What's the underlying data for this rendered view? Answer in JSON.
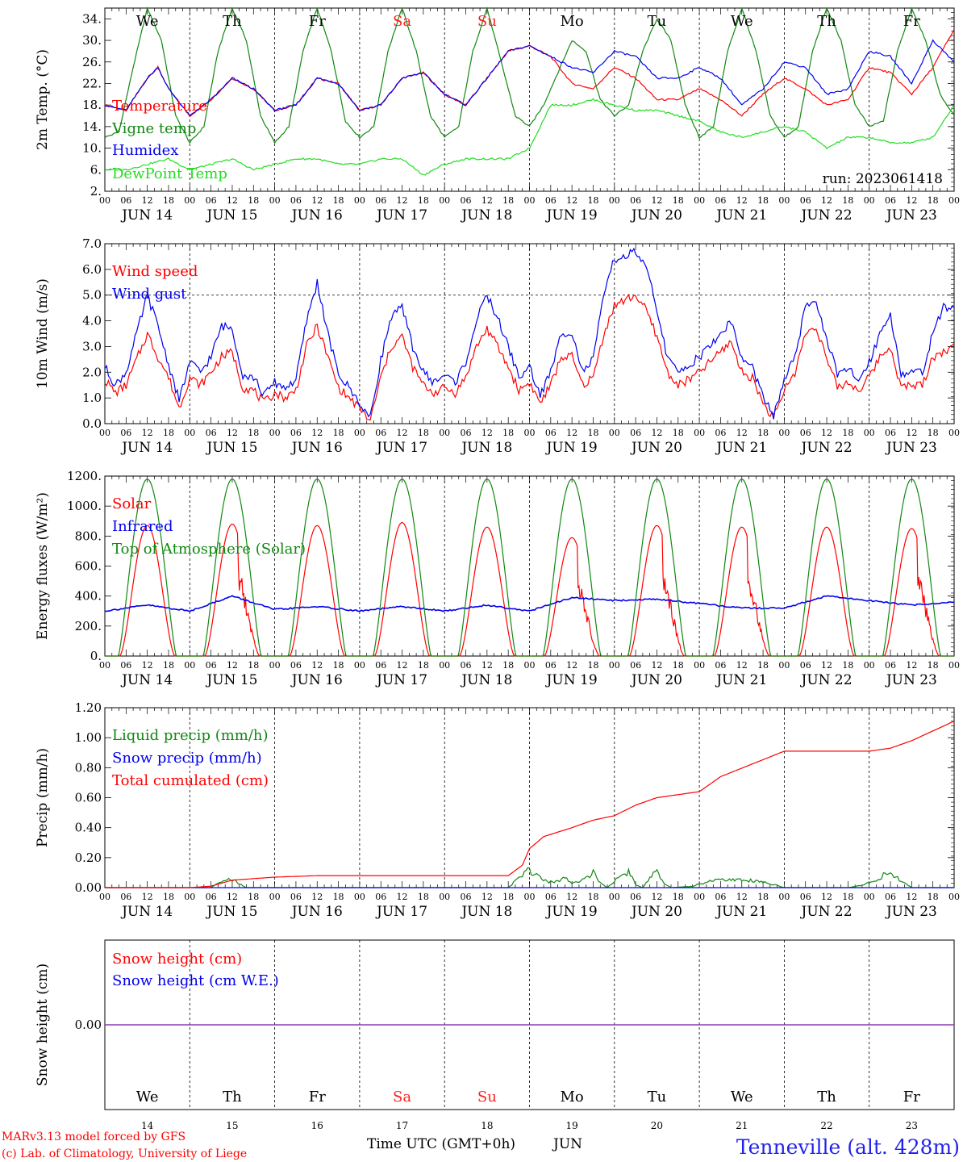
{
  "colors": {
    "temperature": "#ff0000",
    "vigne": "#118811",
    "humidex": "#0000ee",
    "dewpoint": "#22dd22",
    "wind_speed": "#ff0000",
    "wind_gust": "#0000ee",
    "solar": "#ff0000",
    "infrared": "#0000ee",
    "toa": "#118811",
    "liquid": "#118811",
    "snow": "#0000ee",
    "cumulated": "#ff0000",
    "snow_height": "#ff0000",
    "snow_we": "#0000ee",
    "weekend": "#ff2020",
    "weekday": "#000000"
  },
  "days": {
    "top_labels": [
      "We",
      "Th",
      "Fr",
      "Sa",
      "Su",
      "Mo",
      "Tu",
      "We",
      "Th",
      "Fr"
    ],
    "weekend_flags": [
      false,
      false,
      false,
      true,
      true,
      false,
      false,
      false,
      false,
      false
    ],
    "date_labels": [
      "JUN 14",
      "JUN 15",
      "JUN 16",
      "JUN 17",
      "JUN 18",
      "JUN 19",
      "JUN 20",
      "JUN 21",
      "JUN 22",
      "JUN 23"
    ],
    "day_numbers": [
      "14",
      "15",
      "16",
      "17",
      "18",
      "19",
      "20",
      "21",
      "22",
      "23"
    ],
    "hour_labels": [
      "00",
      "06",
      "12",
      "18"
    ],
    "end_hour_label": "00"
  },
  "chart_data": [
    {
      "type": "line",
      "ylabel": "2m Temp. (°C)",
      "ylim": [
        2,
        36
      ],
      "yticks": [
        "2.",
        "6.",
        "10.",
        "14.",
        "18.",
        "22.",
        "26.",
        "30.",
        "34."
      ],
      "annotation": "run: 2023061418",
      "x_unit": "hours since JUN 14 00 UTC",
      "series": [
        {
          "name": "Temperature",
          "x": [
            0,
            6,
            12,
            15,
            18,
            24,
            30,
            36,
            42,
            48,
            54,
            60,
            66,
            72,
            78,
            84,
            90,
            96,
            102,
            108,
            114,
            120,
            126,
            132,
            138,
            144,
            150,
            156,
            162,
            168,
            174,
            180,
            186,
            192,
            198,
            204,
            210,
            216,
            222,
            228,
            234,
            240
          ],
          "values": [
            18,
            17,
            23,
            25,
            21,
            16,
            19,
            23,
            21,
            17,
            18,
            23,
            22,
            17,
            18,
            23,
            24,
            20,
            18,
            23,
            28,
            29,
            27,
            22,
            21,
            25,
            23,
            19,
            19,
            21,
            19,
            16,
            20,
            23,
            21,
            18,
            19,
            25,
            24,
            20,
            25,
            32
          ]
        },
        {
          "name": "Vigne temp",
          "x": [
            0,
            4,
            8,
            12,
            16,
            20,
            24,
            28,
            32,
            36,
            40,
            44,
            48,
            52,
            56,
            60,
            64,
            68,
            72,
            76,
            80,
            84,
            88,
            92,
            96,
            100,
            104,
            108,
            112,
            116,
            120,
            124,
            128,
            132,
            136,
            140,
            144,
            148,
            152,
            156,
            160,
            164,
            168,
            172,
            176,
            180,
            184,
            188,
            192,
            196,
            200,
            204,
            208,
            212,
            216,
            220,
            224,
            228,
            232,
            236,
            240
          ],
          "values": [
            12,
            13,
            25,
            36,
            30,
            16,
            11,
            14,
            28,
            36,
            30,
            16,
            11,
            14,
            28,
            36,
            28,
            15,
            12,
            14,
            28,
            36,
            28,
            16,
            12,
            14,
            28,
            36,
            26,
            16,
            14,
            18,
            24,
            30,
            28,
            19,
            16,
            18,
            28,
            34,
            30,
            18,
            12,
            14,
            28,
            36,
            28,
            16,
            12,
            14,
            28,
            36,
            30,
            18,
            14,
            15,
            28,
            36,
            30,
            20,
            16
          ]
        },
        {
          "name": "Humidex",
          "x": [
            0,
            6,
            12,
            15,
            18,
            24,
            30,
            36,
            42,
            48,
            54,
            60,
            66,
            72,
            78,
            84,
            90,
            96,
            102,
            108,
            114,
            120,
            126,
            132,
            138,
            144,
            150,
            156,
            162,
            168,
            174,
            180,
            186,
            192,
            198,
            204,
            210,
            216,
            222,
            228,
            234,
            240
          ],
          "values": [
            18,
            17,
            23,
            25,
            21,
            16,
            19,
            23,
            21,
            17,
            18,
            23,
            22,
            17,
            18,
            23,
            24,
            20,
            18,
            23,
            28,
            29,
            27,
            25,
            24,
            28,
            27,
            23,
            23,
            25,
            23,
            18,
            21,
            26,
            25,
            20,
            21,
            28,
            27,
            22,
            30,
            26
          ]
        },
        {
          "name": "DewPoint Temp",
          "x": [
            0,
            6,
            12,
            18,
            24,
            30,
            36,
            42,
            48,
            54,
            60,
            66,
            72,
            78,
            84,
            90,
            96,
            102,
            108,
            114,
            120,
            126,
            132,
            138,
            144,
            150,
            156,
            162,
            168,
            174,
            180,
            186,
            192,
            198,
            204,
            210,
            216,
            222,
            228,
            234,
            240
          ],
          "values": [
            6,
            6,
            7,
            8,
            6,
            7,
            8,
            6,
            7,
            8,
            8,
            7,
            7,
            8,
            8,
            5,
            7,
            8,
            8,
            8,
            10,
            18,
            18,
            19,
            18,
            17,
            17,
            16,
            15,
            13,
            12,
            13,
            14,
            13,
            10,
            12,
            12,
            11,
            11,
            12,
            18
          ]
        }
      ]
    },
    {
      "type": "line",
      "ylabel": "10m Wind (m/s)",
      "ylim": [
        0,
        7
      ],
      "yticks": [
        "0.0",
        "1.0",
        "2.0",
        "3.0",
        "4.0",
        "5.0",
        "6.0",
        "7.0"
      ],
      "reference_line": 5.0,
      "x_unit": "hours since JUN 14 00 UTC",
      "series": [
        {
          "name": "Wind speed",
          "x": [
            0,
            3,
            6,
            9,
            12,
            15,
            18,
            21,
            24,
            27,
            30,
            33,
            36,
            39,
            42,
            45,
            48,
            51,
            54,
            57,
            60,
            63,
            66,
            69,
            72,
            75,
            78,
            81,
            84,
            87,
            90,
            93,
            96,
            99,
            102,
            105,
            108,
            111,
            114,
            117,
            120,
            123,
            126,
            129,
            132,
            135,
            138,
            141,
            144,
            147,
            150,
            153,
            156,
            159,
            162,
            165,
            168,
            171,
            174,
            177,
            180,
            183,
            186,
            189,
            192,
            195,
            198,
            201,
            204,
            207,
            210,
            213,
            216,
            219,
            222,
            225,
            228,
            231,
            234,
            237,
            240
          ],
          "values": [
            1.7,
            1.2,
            1.5,
            2.5,
            3.5,
            2.6,
            1.8,
            0.6,
            1.8,
            1.5,
            2.0,
            2.6,
            2.8,
            1.4,
            1.3,
            0.8,
            1.2,
            1.0,
            1.3,
            3.0,
            3.8,
            2.6,
            1.4,
            1.0,
            0.6,
            0.1,
            1.8,
            3.0,
            3.4,
            2.2,
            1.5,
            1.2,
            1.4,
            1.2,
            1.8,
            3.0,
            3.7,
            3.0,
            2.2,
            1.3,
            1.6,
            0.8,
            1.5,
            2.6,
            2.6,
            1.5,
            1.8,
            3.5,
            4.6,
            4.8,
            5.0,
            4.4,
            3.4,
            2.0,
            1.5,
            1.7,
            2.0,
            2.4,
            2.8,
            3.2,
            2.0,
            1.8,
            0.8,
            0.2,
            1.3,
            2.0,
            3.5,
            3.8,
            2.5,
            1.4,
            1.6,
            1.3,
            1.8,
            2.6,
            3.0,
            1.4,
            1.5,
            1.5,
            2.6,
            2.8,
            3.0
          ]
        },
        {
          "name": "Wind gust",
          "x": [
            0,
            3,
            6,
            9,
            12,
            15,
            18,
            21,
            24,
            27,
            30,
            33,
            36,
            39,
            42,
            45,
            48,
            51,
            54,
            57,
            60,
            63,
            66,
            69,
            72,
            75,
            78,
            81,
            84,
            87,
            90,
            93,
            96,
            99,
            102,
            105,
            108,
            111,
            114,
            117,
            120,
            123,
            126,
            129,
            132,
            135,
            138,
            141,
            144,
            147,
            150,
            153,
            156,
            159,
            162,
            165,
            168,
            171,
            174,
            177,
            180,
            183,
            186,
            189,
            192,
            195,
            198,
            201,
            204,
            207,
            210,
            213,
            216,
            219,
            222,
            225,
            228,
            231,
            234,
            237,
            240
          ],
          "values": [
            2.2,
            1.5,
            2.0,
            3.5,
            5.0,
            3.8,
            2.3,
            0.9,
            2.4,
            2.0,
            2.6,
            3.8,
            3.7,
            1.9,
            1.8,
            1.1,
            1.6,
            1.4,
            1.7,
            4.0,
            5.5,
            3.5,
            1.9,
            1.4,
            0.8,
            0.2,
            2.5,
            4.2,
            4.5,
            3.0,
            2.0,
            1.6,
            1.9,
            1.6,
            2.4,
            4.0,
            5.0,
            4.1,
            3.0,
            1.8,
            2.2,
            1.1,
            2.0,
            3.5,
            3.6,
            2.0,
            2.5,
            5.0,
            6.4,
            6.5,
            6.7,
            6.0,
            4.5,
            2.5,
            2.0,
            2.3,
            2.6,
            3.0,
            3.5,
            4.0,
            2.5,
            2.2,
            1.0,
            0.3,
            1.7,
            2.6,
            4.5,
            4.8,
            3.3,
            1.9,
            2.1,
            1.7,
            2.4,
            3.5,
            4.3,
            1.9,
            2.0,
            2.0,
            3.5,
            4.5,
            4.6
          ]
        }
      ]
    },
    {
      "type": "line",
      "ylabel": "Energy fluxes (W/m²)",
      "ylim": [
        0,
        1200
      ],
      "yticks": [
        "0.",
        "200.",
        "400.",
        "600.",
        "800.",
        "1000.",
        "1200."
      ],
      "x_unit": "hours since JUN 14 00 UTC",
      "daily_peak_hour": 12,
      "series": [
        {
          "name": "Solar",
          "daily_peaks": [
            870,
            880,
            870,
            890,
            860,
            790,
            870,
            860,
            860,
            850
          ]
        },
        {
          "name": "Infrared",
          "x": [
            0,
            12,
            24,
            36,
            48,
            60,
            72,
            84,
            96,
            108,
            120,
            132,
            144,
            156,
            168,
            180,
            192,
            204,
            216,
            228,
            240
          ],
          "values": [
            300,
            340,
            300,
            400,
            310,
            330,
            300,
            330,
            300,
            340,
            300,
            390,
            370,
            380,
            350,
            320,
            320,
            400,
            370,
            340,
            360
          ]
        },
        {
          "name": "Top of Atmosphere (Solar)",
          "daily_peaks": [
            1180,
            1180,
            1180,
            1180,
            1180,
            1180,
            1180,
            1180,
            1180,
            1180
          ]
        }
      ]
    },
    {
      "type": "line",
      "ylabel": "Precip (mm/h)",
      "ylim": [
        0,
        1.2
      ],
      "yticks": [
        "0.00",
        "0.20",
        "0.40",
        "0.60",
        "0.80",
        "1.00",
        "1.20"
      ],
      "x_unit": "hours since JUN 14 00 UTC",
      "series": [
        {
          "name": "Liquid precip (mm/h)",
          "x": [
            0,
            30,
            33,
            36,
            40,
            48,
            100,
            114,
            117,
            120,
            124,
            127,
            130,
            132,
            134,
            136,
            138,
            140,
            142,
            144,
            148,
            150,
            152,
            156,
            158,
            160,
            166,
            168,
            172,
            176,
            182,
            186,
            192,
            210,
            214,
            218,
            220,
            222,
            224,
            226,
            228,
            240
          ],
          "values": [
            0,
            0,
            0.05,
            0.07,
            0,
            0,
            0,
            0,
            0.08,
            0.15,
            0.06,
            0.04,
            0.08,
            0.03,
            0.05,
            0.09,
            0.12,
            0.04,
            0,
            0.06,
            0.14,
            0.02,
            0,
            0.15,
            0.03,
            0,
            0.01,
            0.03,
            0.06,
            0.07,
            0.06,
            0.05,
            0,
            0,
            0.02,
            0.06,
            0.1,
            0.14,
            0.08,
            0.04,
            0,
            0
          ]
        },
        {
          "name": "Snow precip (mm/h)",
          "x": [
            0,
            240
          ],
          "values": [
            0,
            0
          ]
        },
        {
          "name": "Total cumulated (cm)",
          "x": [
            0,
            24,
            30,
            36,
            48,
            60,
            72,
            96,
            114,
            118,
            120,
            124,
            132,
            138,
            144,
            150,
            156,
            168,
            174,
            192,
            216,
            222,
            228,
            240
          ],
          "values": [
            0,
            0,
            0.01,
            0.05,
            0.07,
            0.08,
            0.08,
            0.08,
            0.08,
            0.15,
            0.26,
            0.34,
            0.4,
            0.45,
            0.48,
            0.55,
            0.6,
            0.64,
            0.74,
            0.91,
            0.91,
            0.93,
            0.98,
            1.11
          ]
        }
      ]
    },
    {
      "type": "line",
      "ylabel": "Snow height (cm)",
      "ylim": [
        -1,
        1
      ],
      "yticks": [
        "0.00"
      ],
      "x_unit": "hours since JUN 14 00 UTC",
      "series": [
        {
          "name": "Snow height (cm)",
          "x": [
            0,
            240
          ],
          "values": [
            0,
            0
          ]
        },
        {
          "name": "Snow height (cm W.E.)",
          "x": [
            0,
            240
          ],
          "values": [
            0,
            0
          ]
        }
      ]
    }
  ],
  "footer": {
    "xlabel": "Time UTC (GMT+0h)",
    "month": "JUN",
    "credit_line1": "MARv3.13 model forced by GFS",
    "credit_line2": "(c) Lab. of Climatology, University of Liege",
    "station": "Tenneville (alt. 428m)"
  }
}
